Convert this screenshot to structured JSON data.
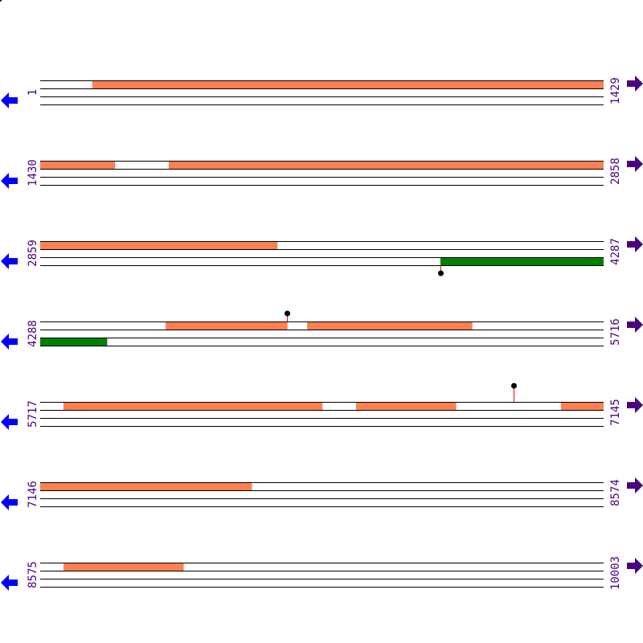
{
  "map": {
    "bp_per_row": 1429,
    "colors": {
      "feature_top": "#ff8050",
      "feature_bottom": "#008000",
      "line": "#000000",
      "marker_stem": "#ff0000",
      "marker_head": "#000000",
      "label": "#4b0082",
      "left_arrow": "#0000ff",
      "right_arrow": "#4b0082"
    },
    "icons": {
      "left": "arrow-left-icon",
      "right": "arrow-right-icon"
    },
    "rows": [
      {
        "start": "1",
        "end": "1429",
        "top_features": [
          [
            133,
            1429
          ]
        ],
        "bottom_features": [],
        "markers": []
      },
      {
        "start": "1430",
        "end": "2858",
        "top_features": [
          [
            1430,
            1619
          ],
          [
            1756,
            2858
          ]
        ],
        "bottom_features": [],
        "markers": []
      },
      {
        "start": "2859",
        "end": "4287",
        "top_features": [
          [
            2859,
            3460
          ]
        ],
        "bottom_features": [
          [
            3874,
            4287
          ]
        ],
        "markers": [
          {
            "pos": 3874,
            "direction": "down"
          }
        ]
      },
      {
        "start": "4288",
        "end": "5716",
        "top_features": [
          [
            4606,
            4914
          ],
          [
            4965,
            5383
          ]
        ],
        "bottom_features": [
          [
            4288,
            4457
          ]
        ],
        "markers": [
          {
            "pos": 4914,
            "direction": "up"
          }
        ]
      },
      {
        "start": "5717",
        "end": "7145",
        "top_features": [
          [
            5776,
            6432
          ],
          [
            6518,
            6771
          ],
          [
            7038,
            7145
          ]
        ],
        "bottom_features": [],
        "markers": [
          {
            "pos": 6918,
            "direction": "up",
            "tall": true
          }
        ]
      },
      {
        "start": "7146",
        "end": "8574",
        "top_features": [
          [
            7146,
            7682
          ]
        ],
        "bottom_features": [],
        "markers": []
      },
      {
        "start": "8575",
        "end": "10003",
        "top_features": [
          [
            8634,
            8938
          ]
        ],
        "bottom_features": [],
        "markers": []
      }
    ]
  }
}
